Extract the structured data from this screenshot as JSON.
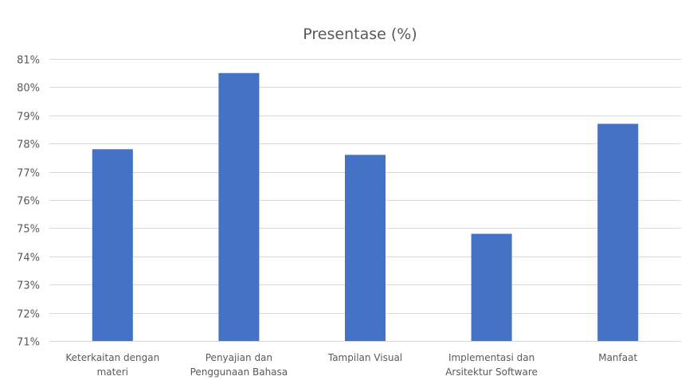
{
  "chart_data": {
    "type": "bar",
    "title": "Presentase (%)",
    "xlabel": "",
    "ylabel": "",
    "categories": [
      [
        "Keterkaitan dengan",
        "materi"
      ],
      [
        "Penyajian dan",
        "Penggunaan Bahasa"
      ],
      [
        "Tampilan Visual"
      ],
      [
        "Implementasi dan",
        "Arsitektur Software"
      ],
      [
        "Manfaat"
      ]
    ],
    "values": [
      77.8,
      80.5,
      77.6,
      74.8,
      78.7
    ],
    "ylim": [
      71,
      81
    ],
    "yticks": [
      71,
      72,
      73,
      74,
      75,
      76,
      77,
      78,
      79,
      80,
      81
    ],
    "ytick_labels": [
      "71%",
      "72%",
      "73%",
      "74%",
      "75%",
      "76%",
      "77%",
      "78%",
      "79%",
      "80%",
      "81%"
    ],
    "bar_color": "#4472c4",
    "grid": true,
    "legend": "none"
  }
}
